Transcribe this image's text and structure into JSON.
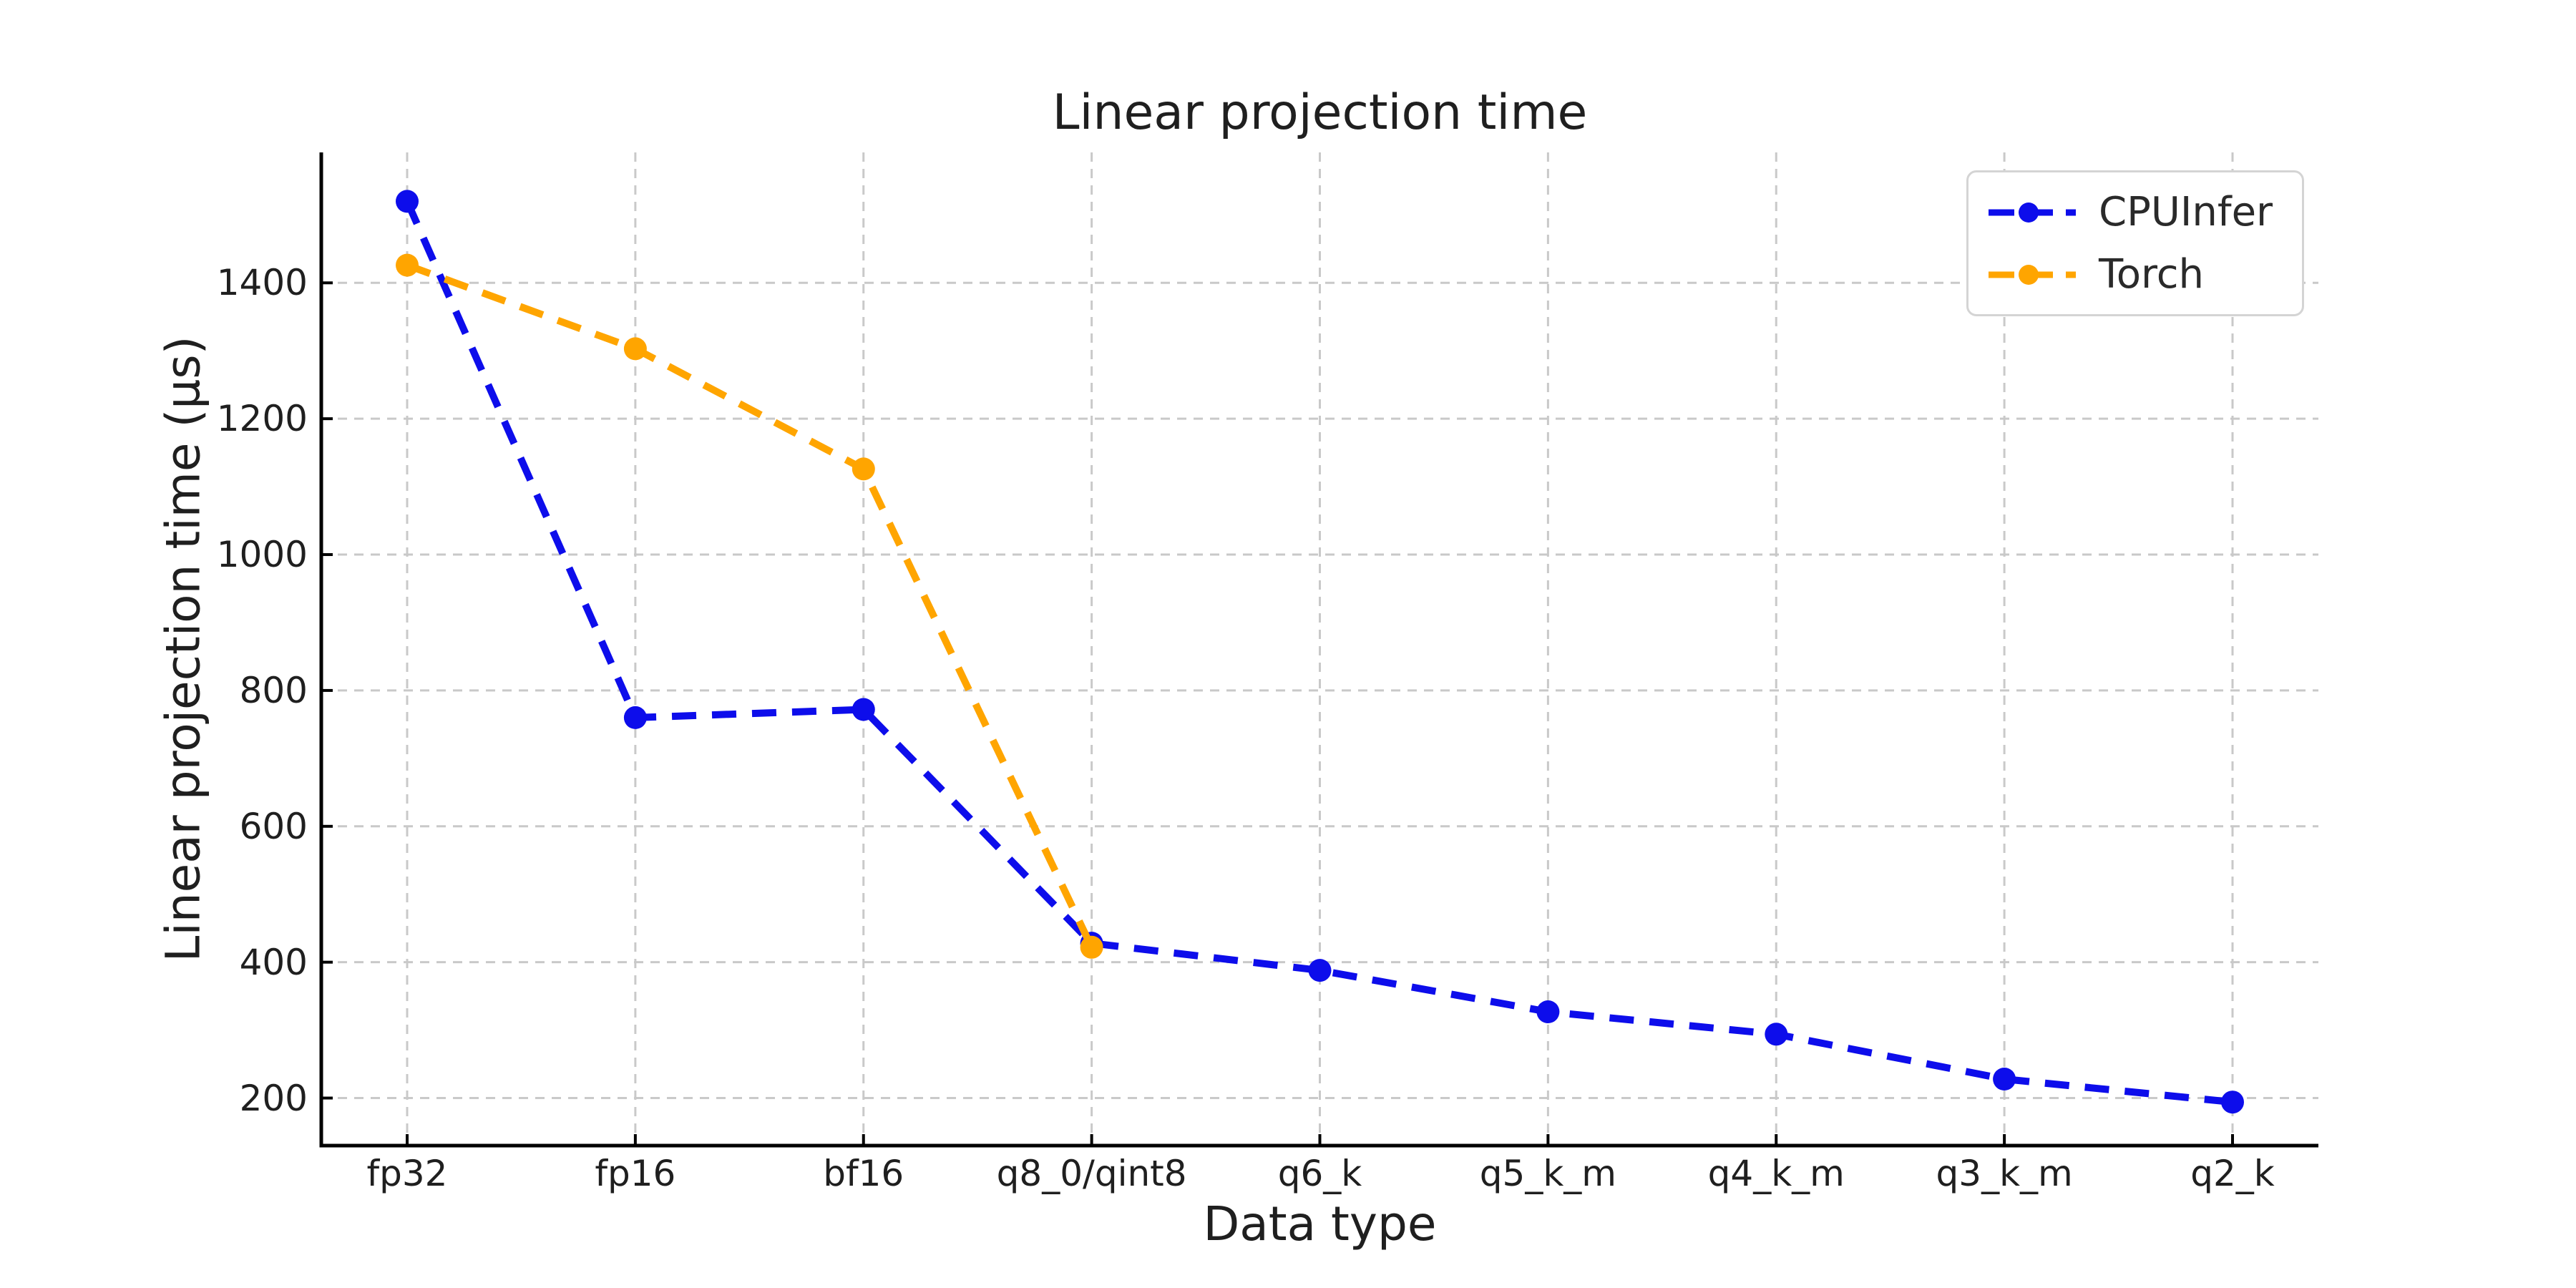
{
  "figure": {
    "background": "#ffffff"
  },
  "chart_data": {
    "type": "line",
    "title": "Linear projection time",
    "xlabel": "Data type",
    "ylabel": "Linear projection time (µs)",
    "categories": [
      "fp32",
      "fp16",
      "bf16",
      "q8_0/qint8",
      "q6_k",
      "q5_k_m",
      "q4_k_m",
      "q3_k_m",
      "q2_k"
    ],
    "series": [
      {
        "name": "CPUInfer",
        "color": "#0d0deb",
        "linestyle": "dashed",
        "marker": "circle",
        "values": [
          1520,
          760,
          772,
          428,
          388,
          327,
          294,
          228,
          194
        ]
      },
      {
        "name": "Torch",
        "color": "#ffa500",
        "linestyle": "dashed",
        "marker": "circle",
        "values": [
          1426,
          1303,
          1126,
          422,
          null,
          null,
          null,
          null,
          null
        ]
      }
    ],
    "yticks": [
      200,
      400,
      600,
      800,
      1000,
      1200,
      1400
    ],
    "ylim": [
      130,
      1592
    ],
    "grid": true,
    "grid_color": "#c9c9c9",
    "tick_direction": "in",
    "legend_position": "upper right"
  }
}
